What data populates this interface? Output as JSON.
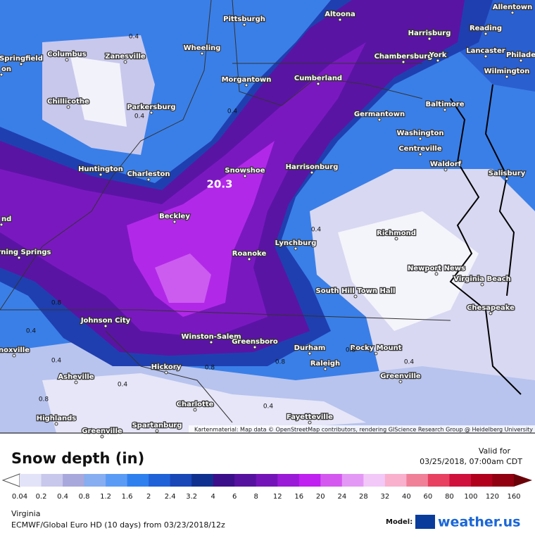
{
  "map": {
    "cities": [
      "Pittsburgh",
      "Altoona",
      "Allentown",
      "Harrisburg",
      "Reading",
      "Springfield",
      "Columbus",
      "Zanesville",
      "Wheeling",
      "Chambersburg",
      "York",
      "Lancaster",
      "Philade",
      "on",
      "Wilmington",
      "Morgantown",
      "Cumberland",
      "Chillicothe",
      "Parkersburg",
      "Germantown",
      "Baltimore",
      "Washington",
      "Centreville",
      "Waldorf",
      "Huntington",
      "Charleston",
      "Snowshoe",
      "Harrisonburg",
      "Salisbury",
      "Beckley",
      "nd",
      "Richmond",
      "Lynchburg",
      "Roanoke",
      "Burning Springs",
      "Newport News",
      "Virginia Beach",
      "South Hill Town Hall",
      "Chesapeake",
      "Johnson City",
      "noxville",
      "Winston-Salem",
      "Greensboro",
      "Durham",
      "Rocky Mount",
      "Raleigh",
      "Hickory",
      "Asheville",
      "Greenville",
      "Charlotte",
      "Fayetteville",
      "Highlands",
      "Spartanburg",
      "Greenville"
    ],
    "contour_labels": [
      "20.3",
      "0.4",
      "0.4",
      "0.4",
      "0.4",
      "0.8",
      "0.8",
      "0.8",
      "0.4",
      "0.4",
      "0.4",
      "0.4",
      "0.4",
      "0.8",
      "0.8"
    ],
    "attribution": "Kartenmaterial: Map data © OpenStreetMap contributors, rendering GIScience Research Group @ Heidelberg University"
  },
  "footer": {
    "title": "Snow depth (in)",
    "valid_label": "Valid for",
    "valid_time": "03/25/2018, 07:00am CDT",
    "legend": {
      "labels": [
        "0.04",
        "0.2",
        "0.4",
        "0.8",
        "1.2",
        "1.6",
        "2",
        "2.4",
        "3.2",
        "4",
        "6",
        "8",
        "12",
        "16",
        "20",
        "24",
        "28",
        "32",
        "40",
        "60",
        "80",
        "100",
        "120",
        "160"
      ],
      "colors": [
        "#e2e2f8",
        "#c8c8ec",
        "#a8a8dc",
        "#86aef0",
        "#5a9cf5",
        "#2f80ef",
        "#1f62d8",
        "#1847b8",
        "#10308f",
        "#3c0f8a",
        "#56129e",
        "#7414b8",
        "#9a1ad8",
        "#c020f0",
        "#d458f0",
        "#e498f5",
        "#f2c8f8",
        "#f8b0cc",
        "#f08098",
        "#e84060",
        "#d0103c",
        "#b0001c",
        "#900010",
        "#6a0008"
      ]
    },
    "region": "Virginia",
    "model_run": "ECMWF/Global Euro HD (10 days) from 03/23/2018/12z",
    "model_label": "Model:",
    "brand": "weather.us"
  }
}
